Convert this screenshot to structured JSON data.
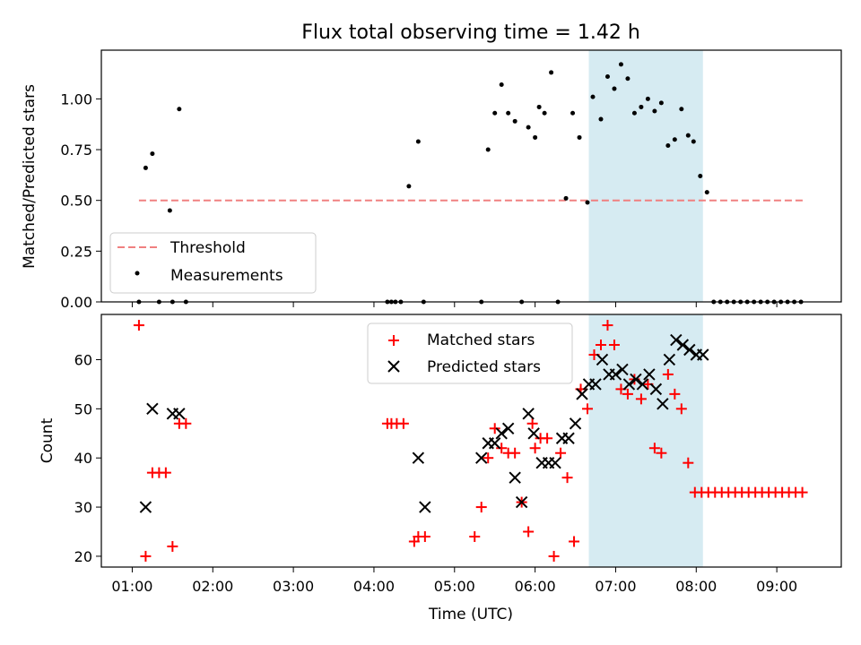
{
  "figure": {
    "title": "Flux total observing time = 1.42 h",
    "xlabel": "Time (UTC)",
    "x_ticks": [
      "01:00",
      "02:00",
      "03:00",
      "04:00",
      "05:00",
      "06:00",
      "07:00",
      "08:00",
      "09:00"
    ]
  },
  "colors": {
    "threshold": "#f08080",
    "measurements": "#000000",
    "matched": "#ff0000",
    "predicted": "#000000",
    "span": "#add8e6"
  },
  "chart_data": [
    {
      "type": "scatter",
      "panel": "top",
      "ylabel": "Matched/Predicted stars",
      "xlim": [
        "00:37",
        "09:48"
      ],
      "ylim": [
        0,
        1.24
      ],
      "y_ticks": [
        "0.00",
        "0.25",
        "0.50",
        "0.75",
        "1.00"
      ],
      "grid": false,
      "legend_position": "lower-left",
      "shaded_span": [
        "06:40",
        "08:05"
      ],
      "series": [
        {
          "name": "Threshold",
          "kind": "dashed-line",
          "x": [
            "01:05",
            "09:20"
          ],
          "y": [
            0.5,
            0.5
          ]
        },
        {
          "name": "Measurements",
          "kind": "dots",
          "x": [
            "01:05",
            "01:10",
            "01:15",
            "01:20",
            "01:28",
            "01:30",
            "01:35",
            "01:40",
            "04:10",
            "04:13",
            "04:16",
            "04:20",
            "04:26",
            "04:33",
            "04:37",
            "05:20",
            "05:25",
            "05:30",
            "05:35",
            "05:40",
            "05:45",
            "05:50",
            "05:55",
            "06:00",
            "06:03",
            "06:07",
            "06:12",
            "06:17",
            "06:23",
            "06:28",
            "06:33",
            "06:39",
            "06:43",
            "06:49",
            "06:54",
            "06:59",
            "07:04",
            "07:09",
            "07:14",
            "07:19",
            "07:24",
            "07:29",
            "07:34",
            "07:39",
            "07:44",
            "07:49",
            "07:54",
            "07:58",
            "08:03",
            "08:08",
            "08:13",
            "08:18",
            "08:23",
            "08:28",
            "08:33",
            "08:38",
            "08:43",
            "08:48",
            "08:53",
            "08:58",
            "09:03",
            "09:08",
            "09:13",
            "09:18"
          ],
          "y": [
            0.0,
            0.66,
            0.73,
            0.0,
            0.45,
            0.0,
            0.95,
            0.0,
            0.0,
            0.0,
            0.0,
            0.0,
            0.57,
            0.79,
            0.0,
            0.0,
            0.75,
            0.93,
            1.07,
            0.93,
            0.89,
            0.0,
            0.86,
            0.81,
            0.96,
            0.93,
            1.13,
            0.0,
            0.51,
            0.93,
            0.81,
            0.49,
            1.01,
            0.9,
            1.11,
            1.05,
            1.17,
            1.1,
            0.93,
            0.96,
            1.0,
            0.94,
            0.98,
            0.77,
            0.8,
            0.95,
            0.82,
            0.79,
            0.62,
            0.54,
            0.0,
            0.0,
            0.0,
            0.0,
            0.0,
            0.0,
            0.0,
            0.0,
            0.0,
            0.0,
            0.0,
            0.0,
            0.0,
            0.0
          ]
        }
      ]
    },
    {
      "type": "scatter",
      "panel": "bottom",
      "ylabel": "Count",
      "xlim": [
        "00:37",
        "09:48"
      ],
      "ylim": [
        17.8,
        69.2
      ],
      "y_ticks": [
        "20",
        "30",
        "40",
        "50",
        "60"
      ],
      "grid": false,
      "legend_position": "upper-center",
      "shaded_span": [
        "06:40",
        "08:05"
      ],
      "series": [
        {
          "name": "Matched stars",
          "marker": "+",
          "x": [
            "01:05",
            "01:10",
            "01:15",
            "01:20",
            "01:25",
            "01:30",
            "01:35",
            "01:40",
            "04:10",
            "04:13",
            "04:17",
            "04:22",
            "04:30",
            "04:33",
            "04:38",
            "05:15",
            "05:20",
            "05:25",
            "05:30",
            "05:35",
            "05:40",
            "05:45",
            "05:50",
            "05:55",
            "05:58",
            "06:00",
            "06:04",
            "06:09",
            "06:14",
            "06:19",
            "06:24",
            "06:29",
            "06:34",
            "06:39",
            "06:44",
            "06:49",
            "06:54",
            "06:59",
            "07:04",
            "07:09",
            "07:14",
            "07:19",
            "07:24",
            "07:29",
            "07:34",
            "07:39",
            "07:44",
            "07:49",
            "07:54",
            "07:59",
            "08:04",
            "08:09",
            "08:14",
            "08:19",
            "08:24",
            "08:29",
            "08:34",
            "08:39",
            "08:44",
            "08:49",
            "08:54",
            "08:59",
            "09:04",
            "09:09",
            "09:14",
            "09:19"
          ],
          "y": [
            67,
            20,
            37,
            37,
            37,
            22,
            47,
            47,
            47,
            47,
            47,
            47,
            23,
            24,
            24,
            24,
            30,
            40,
            46,
            42,
            41,
            41,
            31,
            25,
            47,
            42,
            44,
            44,
            20,
            41,
            36,
            23,
            54,
            50,
            61,
            63,
            67,
            63,
            54,
            53,
            56,
            52,
            55,
            42,
            41,
            57,
            53,
            50,
            39,
            33,
            33,
            33,
            33,
            33,
            33,
            33,
            33,
            33,
            33,
            33,
            33,
            33,
            33,
            33,
            33,
            33
          ]
        },
        {
          "name": "Predicted stars",
          "marker": "x",
          "x": [
            "01:10",
            "01:15",
            "01:30",
            "01:35",
            "04:33",
            "04:38",
            "05:20",
            "05:25",
            "05:30",
            "05:35",
            "05:40",
            "05:45",
            "05:50",
            "05:55",
            "05:59",
            "06:05",
            "06:10",
            "06:15",
            "06:20",
            "06:25",
            "06:30",
            "06:35",
            "06:40",
            "06:45",
            "06:50",
            "06:55",
            "07:00",
            "07:05",
            "07:10",
            "07:15",
            "07:20",
            "07:25",
            "07:30",
            "07:35",
            "07:40",
            "07:45",
            "07:50",
            "07:55",
            "08:00",
            "08:05"
          ],
          "y": [
            30,
            50,
            49,
            49,
            40,
            30,
            40,
            43,
            43,
            45,
            46,
            36,
            31,
            49,
            45,
            39,
            39,
            39,
            44,
            44,
            47,
            53,
            55,
            55,
            60,
            57,
            57,
            58,
            55,
            56,
            55,
            57,
            54,
            51,
            60,
            64,
            63,
            62,
            61,
            61
          ]
        }
      ]
    }
  ]
}
